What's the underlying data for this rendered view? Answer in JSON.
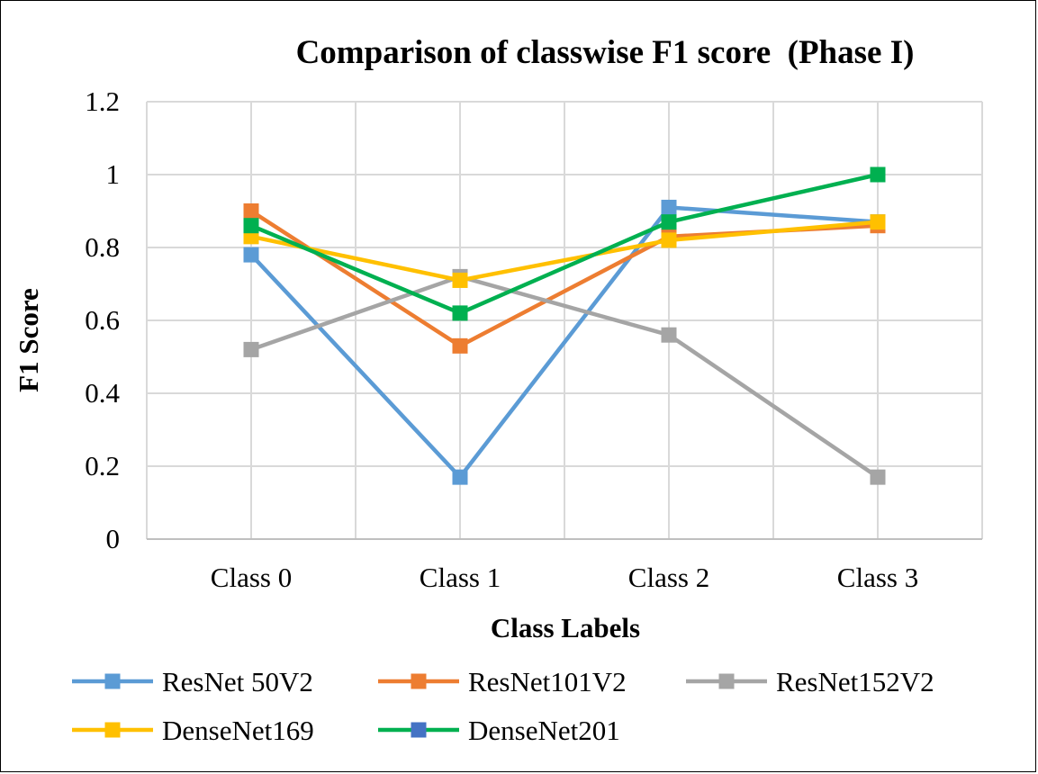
{
  "chart_data": {
    "type": "line",
    "title": "Comparison of classwise F1 score  (Phase I)",
    "xlabel": "Class Labels",
    "ylabel": "F1 Score",
    "categories": [
      "Class 0",
      "Class 1",
      "Class 2",
      "Class 3"
    ],
    "ylim": [
      0,
      1.2
    ],
    "yticks": [
      "0",
      "0.2",
      "0.4",
      "0.6",
      "0.8",
      "1",
      "1.2"
    ],
    "grid": true,
    "legend": "bottom",
    "series": [
      {
        "name": "ResNet 50V2",
        "color": "#5B9BD5",
        "values": [
          0.78,
          0.17,
          0.91,
          0.87
        ]
      },
      {
        "name": "ResNet101V2",
        "color": "#ED7D31",
        "values": [
          0.9,
          0.53,
          0.83,
          0.86
        ]
      },
      {
        "name": "ResNet152V2",
        "color": "#A5A5A5",
        "values": [
          0.52,
          0.72,
          0.56,
          0.17
        ]
      },
      {
        "name": "DenseNet169",
        "color": "#FFC000",
        "values": [
          0.83,
          0.71,
          0.82,
          0.87
        ]
      },
      {
        "name": "DenseNet201",
        "color": "#00B050",
        "marker_color": "#4472C4",
        "values": [
          0.86,
          0.62,
          0.87,
          1.0
        ]
      }
    ]
  }
}
